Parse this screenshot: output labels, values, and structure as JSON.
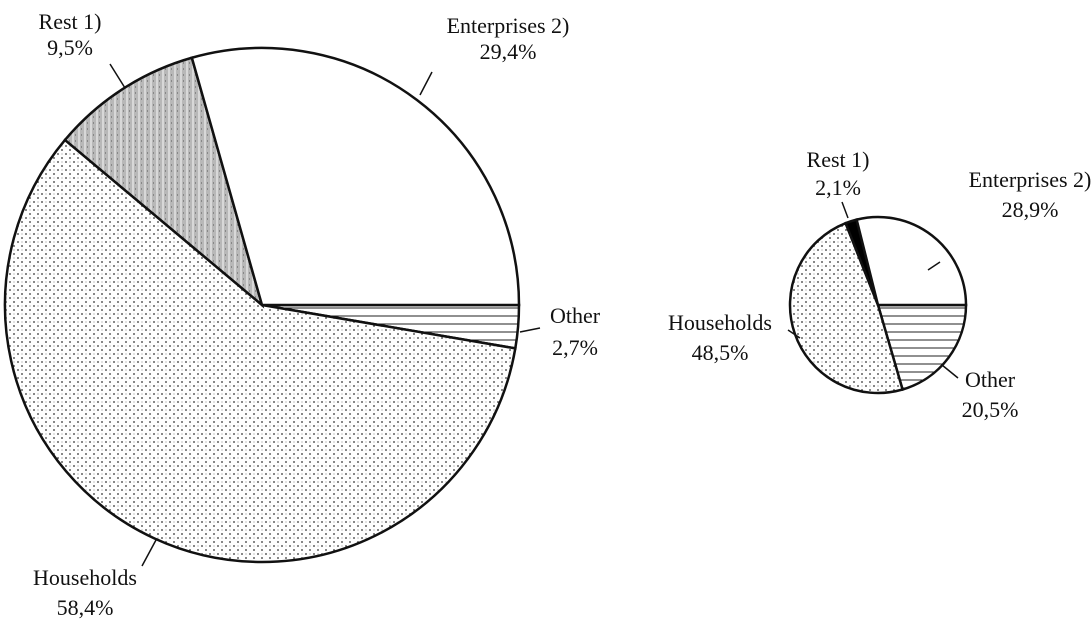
{
  "chart_data": [
    {
      "type": "pie",
      "categories": [
        "Other",
        "Households",
        "Rest 1)",
        "Enterprises 2)"
      ],
      "values": [
        2.7,
        58.4,
        9.5,
        29.4
      ],
      "value_labels": [
        "2,7%",
        "58,4%",
        "9,5%",
        "29,4%"
      ],
      "fills": [
        "stripes",
        "dots",
        "shade",
        "none"
      ]
    },
    {
      "type": "pie",
      "categories": [
        "Other",
        "Households",
        "Rest 1)",
        "Enterprises 2)"
      ],
      "values": [
        20.5,
        48.5,
        2.1,
        28.9
      ],
      "value_labels": [
        "20,5%",
        "48,5%",
        "2,1%",
        "28,9%"
      ],
      "fills": [
        "stripes",
        "dots",
        "solid",
        "none"
      ]
    }
  ]
}
